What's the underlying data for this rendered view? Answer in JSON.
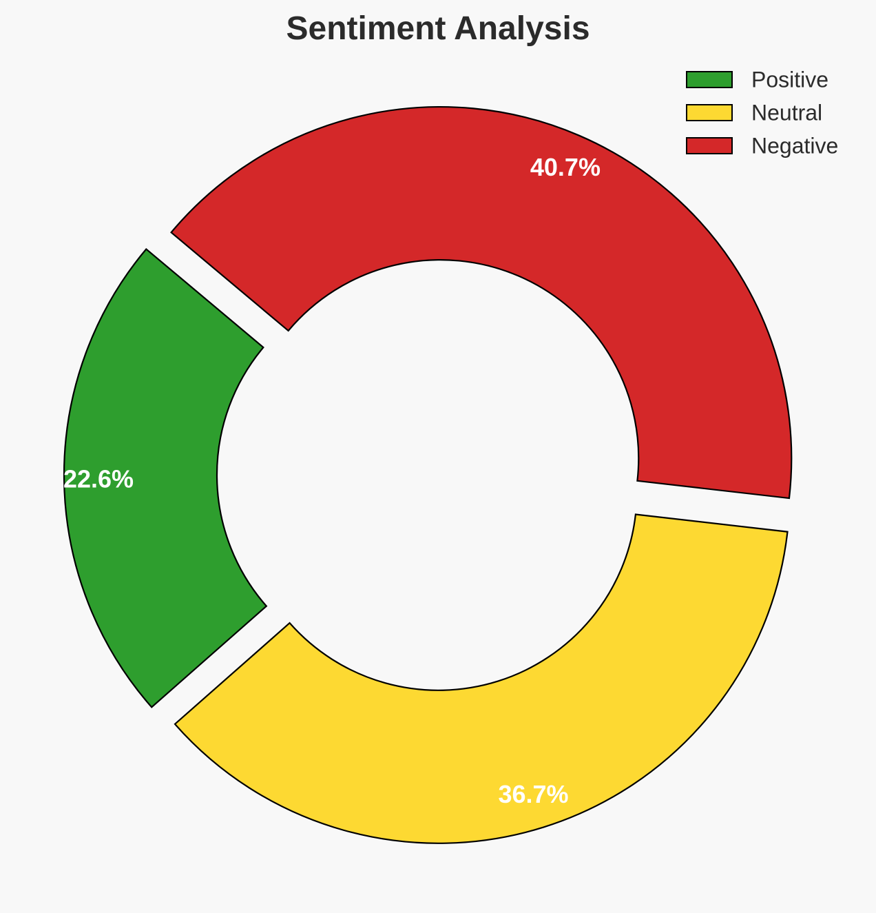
{
  "chart_data": {
    "type": "pie",
    "variant": "donut",
    "title": "Sentiment Analysis",
    "categories": [
      "Positive",
      "Neutral",
      "Negative"
    ],
    "values": [
      22.6,
      36.7,
      40.7
    ],
    "labels": [
      "22.6%",
      "36.7%",
      "40.7%"
    ],
    "colors": [
      "#2e9e2e",
      "#fdd932",
      "#d42829"
    ],
    "exploded": true,
    "legend_position": "top-right",
    "legend": [
      {
        "label": "Positive",
        "color": "#2e9e2e"
      },
      {
        "label": "Neutral",
        "color": "#fdd932"
      },
      {
        "label": "Negative",
        "color": "#d42829"
      }
    ]
  },
  "styles": {
    "background": "#f8f8f8",
    "edge_color": "#000000",
    "label_color": "#ffffff"
  }
}
